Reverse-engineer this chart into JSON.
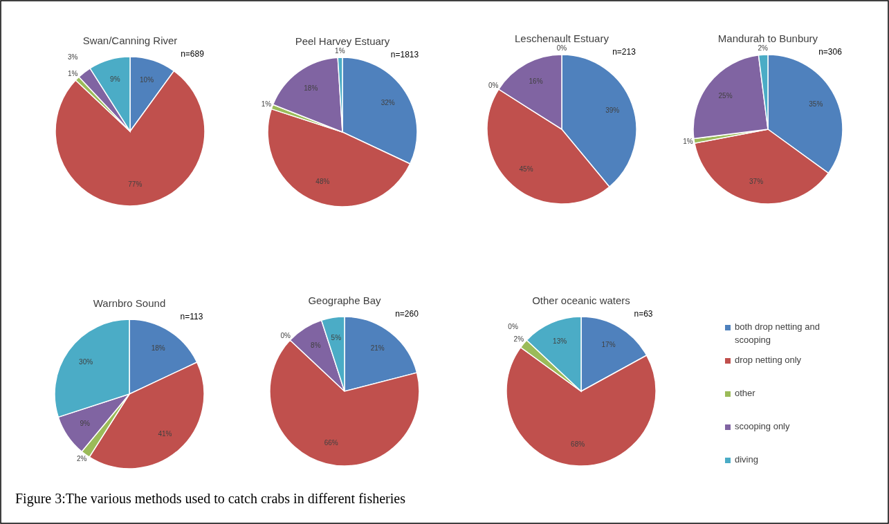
{
  "chart_data": [
    {
      "type": "pie",
      "title": "Swan/Canning River",
      "categories": [
        null,
        null,
        null,
        null,
        null
      ],
      "values": [
        10,
        77,
        1,
        3,
        9
      ],
      "value_labels": [
        "10%",
        "77%",
        "1%",
        "3%",
        "9%"
      ],
      "colors": [
        "#4f81bd",
        "#c0504d",
        "#9bbb59",
        "#8064a2",
        "#4bacc6"
      ],
      "annotations": [
        "n=689"
      ]
    },
    {
      "type": "pie",
      "title": "Peel Harvey Estuary",
      "categories": [
        null,
        null,
        null,
        null,
        null
      ],
      "values": [
        32,
        48,
        1,
        18,
        1
      ],
      "value_labels": [
        "32%",
        "48%",
        "1%",
        "18%",
        "1%"
      ],
      "colors": [
        "#4f81bd",
        "#c0504d",
        "#9bbb59",
        "#8064a2",
        "#4bacc6"
      ],
      "annotations": [
        "n=1813"
      ]
    },
    {
      "type": "pie",
      "title": "Leschenault Estuary",
      "categories": [
        null,
        null,
        null,
        null,
        null
      ],
      "values": [
        39,
        45,
        0,
        16,
        0
      ],
      "value_labels": [
        "39%",
        "45%",
        "0%",
        "16%",
        "0%"
      ],
      "colors": [
        "#4f81bd",
        "#c0504d",
        "#9bbb59",
        "#8064a2",
        "#4bacc6"
      ],
      "annotations": [
        "n=213"
      ]
    },
    {
      "type": "pie",
      "title": "Mandurah to Bunbury",
      "categories": [
        null,
        null,
        null,
        null,
        null
      ],
      "values": [
        35,
        37,
        1,
        25,
        2
      ],
      "value_labels": [
        "35%",
        "37%",
        "1%",
        "25%",
        "2%"
      ],
      "colors": [
        "#4f81bd",
        "#c0504d",
        "#9bbb59",
        "#8064a2",
        "#4bacc6"
      ],
      "annotations": [
        "n=306"
      ]
    },
    {
      "type": "pie",
      "title": "Warnbro Sound",
      "categories": [
        null,
        null,
        null,
        null,
        null
      ],
      "values": [
        18,
        41,
        2,
        9,
        30
      ],
      "value_labels": [
        "18%",
        "41%",
        "2%",
        "9%",
        "30%"
      ],
      "colors": [
        "#4f81bd",
        "#c0504d",
        "#9bbb59",
        "#8064a2",
        "#4bacc6"
      ],
      "annotations": [
        "n=113"
      ]
    },
    {
      "type": "pie",
      "title": "Geographe Bay",
      "categories": [
        null,
        null,
        null,
        null,
        null
      ],
      "values": [
        21,
        66,
        0,
        8,
        5
      ],
      "value_labels": [
        "21%",
        "66%",
        "0%",
        "8%",
        "5%"
      ],
      "colors": [
        "#4f81bd",
        "#c0504d",
        "#9bbb59",
        "#8064a2",
        "#4bacc6"
      ],
      "annotations": [
        "n=260"
      ]
    },
    {
      "type": "pie",
      "title": "Other oceanic waters",
      "categories": [
        "both drop netting and scooping",
        "drop netting only",
        "other",
        "scooping only",
        "diving"
      ],
      "values": [
        17,
        68,
        2,
        0,
        13
      ],
      "value_labels": [
        "17%",
        "68%",
        "2%",
        "0%",
        "13%"
      ],
      "colors": [
        "#4f81bd",
        "#c0504d",
        "#9bbb59",
        "#8064a2",
        "#4bacc6"
      ],
      "legend": "right",
      "annotations": [
        "n=63",
        "Figure 3:The various methods used to catch crabs in different fisheries"
      ]
    }
  ]
}
